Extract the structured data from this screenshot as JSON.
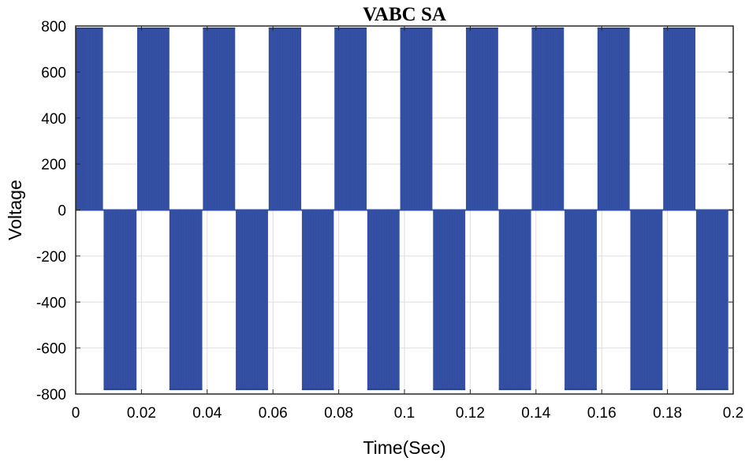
{
  "chart_data": {
    "type": "line",
    "title": "VABC SA",
    "xlabel": "Time(Sec)",
    "ylabel": "Voltage",
    "xlim": [
      0,
      0.2
    ],
    "ylim": [
      -800,
      800
    ],
    "xticks": [
      0,
      0.02,
      0.04,
      0.06,
      0.08,
      0.1,
      0.12,
      0.14,
      0.16,
      0.18,
      0.2
    ],
    "xtick_labels": [
      "0",
      "0.02",
      "0.04",
      "0.06",
      "0.08",
      "0.1",
      "0.12",
      "0.14",
      "0.16",
      "0.18",
      "0.2"
    ],
    "yticks": [
      800,
      600,
      400,
      200,
      0,
      -200,
      -400,
      -600,
      -800
    ],
    "ytick_labels": [
      "800",
      "600",
      "400",
      "200",
      "0",
      "-200",
      "-400",
      "-600",
      "-800"
    ],
    "grid": true,
    "series_color": "#3450a4",
    "series": [
      {
        "name": "VABC SA",
        "description": "PWM switching voltage; blocks of dense pulses between 0 and the level shown",
        "pulse_blocks": [
          {
            "t_start": 0.0,
            "t_end": 0.0083,
            "level": 790
          },
          {
            "t_start": 0.0085,
            "t_end": 0.0185,
            "level": -780
          },
          {
            "t_start": 0.0187,
            "t_end": 0.0285,
            "level": 790
          },
          {
            "t_start": 0.0285,
            "t_end": 0.0385,
            "level": -780
          },
          {
            "t_start": 0.0387,
            "t_end": 0.0485,
            "level": 790
          },
          {
            "t_start": 0.0487,
            "t_end": 0.0585,
            "level": -780
          },
          {
            "t_start": 0.0587,
            "t_end": 0.0686,
            "level": 790
          },
          {
            "t_start": 0.0688,
            "t_end": 0.0785,
            "level": -780
          },
          {
            "t_start": 0.0787,
            "t_end": 0.0885,
            "level": 790
          },
          {
            "t_start": 0.0887,
            "t_end": 0.0985,
            "level": -780
          },
          {
            "t_start": 0.0987,
            "t_end": 0.1085,
            "level": 790
          },
          {
            "t_start": 0.1087,
            "t_end": 0.1185,
            "level": -780
          },
          {
            "t_start": 0.1187,
            "t_end": 0.1285,
            "level": 790
          },
          {
            "t_start": 0.1287,
            "t_end": 0.1385,
            "level": -780
          },
          {
            "t_start": 0.1387,
            "t_end": 0.1485,
            "level": 790
          },
          {
            "t_start": 0.1487,
            "t_end": 0.1585,
            "level": -780
          },
          {
            "t_start": 0.1587,
            "t_end": 0.1685,
            "level": 790
          },
          {
            "t_start": 0.1687,
            "t_end": 0.1785,
            "level": -780
          },
          {
            "t_start": 0.1787,
            "t_end": 0.1885,
            "level": 790
          },
          {
            "t_start": 0.1887,
            "t_end": 0.1985,
            "level": -780
          }
        ]
      }
    ]
  }
}
